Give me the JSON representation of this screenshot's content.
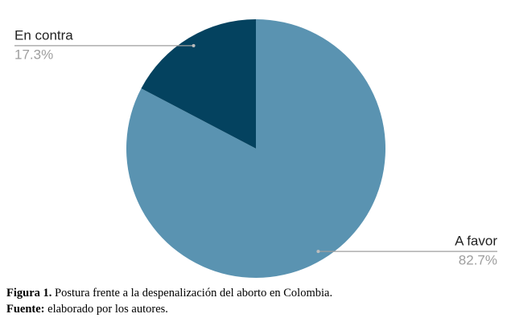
{
  "chart_data": {
    "type": "pie",
    "categories": [
      "A favor",
      "En contra"
    ],
    "values": [
      82.7,
      17.3
    ],
    "value_labels": [
      "82.7%",
      "17.3%"
    ],
    "colors": [
      "#5a93b1",
      "#04425f"
    ],
    "caption": {
      "figure_label": "Figura 1.",
      "figure_text": "Postura frente a la despenalización del aborto en Colombia.",
      "source_label": "Fuente:",
      "source_text": "elaborado por los autores."
    }
  }
}
